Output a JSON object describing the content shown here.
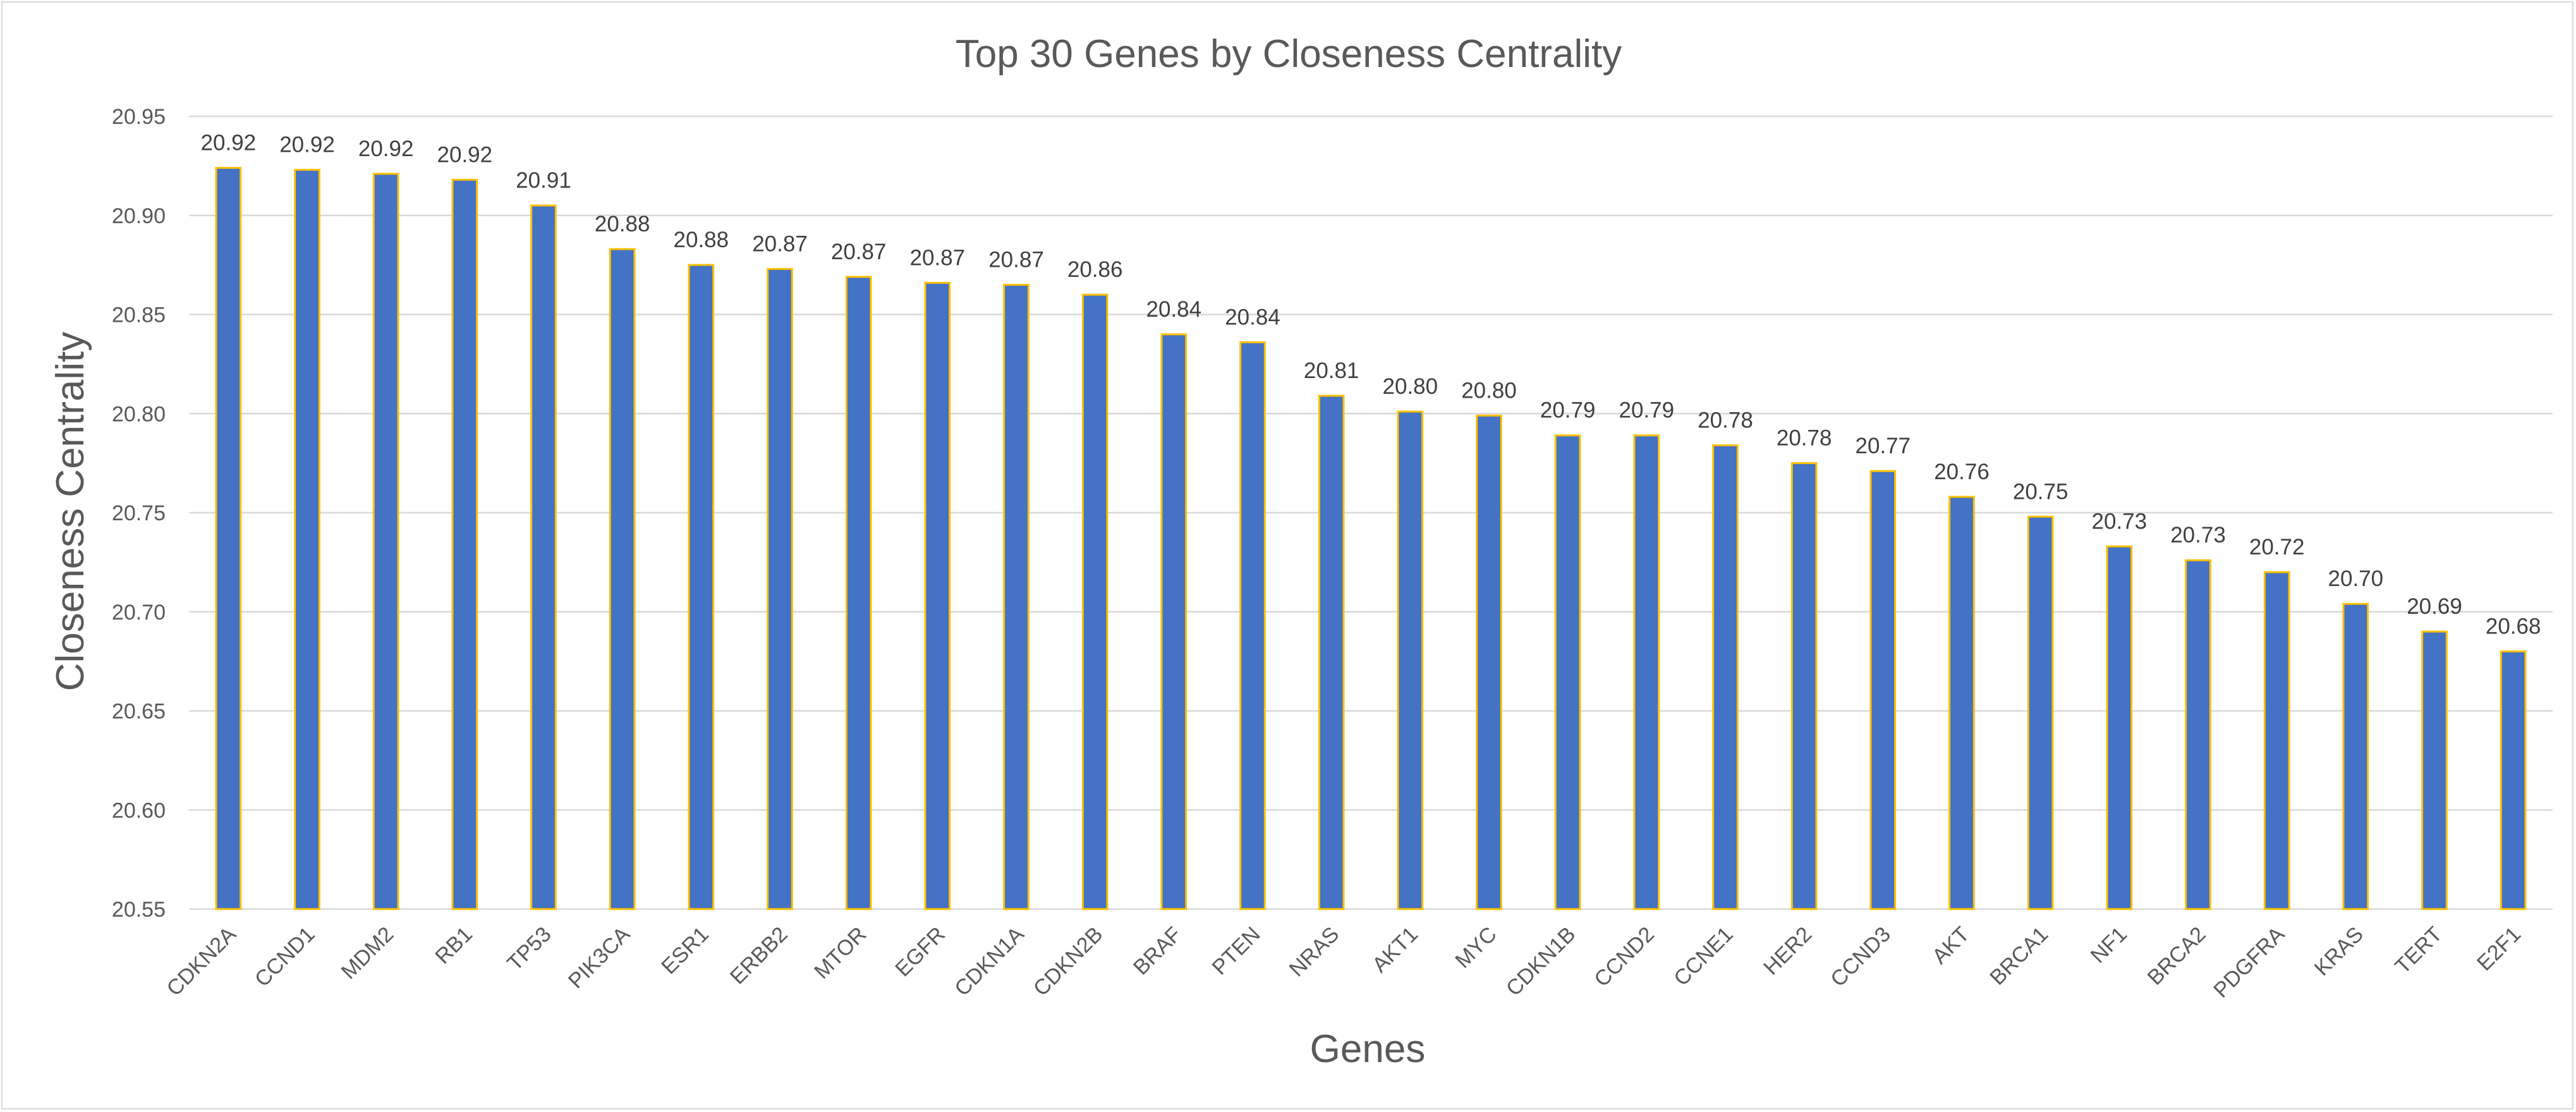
{
  "chart_data": {
    "type": "bar",
    "title": "Top 30 Genes by Closeness Centrality",
    "xlabel": "Genes",
    "ylabel": "Closeness Centrality",
    "ylim": [
      20.55,
      20.95
    ],
    "ytick_step": 0.05,
    "ytick_labels": [
      "20.55",
      "20.60",
      "20.65",
      "20.70",
      "20.75",
      "20.80",
      "20.85",
      "20.90",
      "20.95"
    ],
    "grid": true,
    "legend": "none",
    "bar_color": "#4472c4",
    "bar_edge_color": "#ffc000",
    "categories": [
      "CDKN2A",
      "CCND1",
      "MDM2",
      "RB1",
      "TP53",
      "PIK3CA",
      "ESR1",
      "ERBB2",
      "MTOR",
      "EGFR",
      "CDKN1A",
      "CDKN2B",
      "BRAF",
      "PTEN",
      "NRAS",
      "AKT1",
      "MYC",
      "CDKN1B",
      "CCND2",
      "CCNE1",
      "HER2",
      "CCND3",
      "AKT",
      "BRCA1",
      "NF1",
      "BRCA2",
      "PDGFRA",
      "KRAS",
      "TERT",
      "E2F1"
    ],
    "values": [
      20.924,
      20.923,
      20.921,
      20.918,
      20.905,
      20.883,
      20.875,
      20.873,
      20.869,
      20.866,
      20.865,
      20.86,
      20.84,
      20.836,
      20.809,
      20.801,
      20.799,
      20.789,
      20.789,
      20.784,
      20.775,
      20.771,
      20.758,
      20.748,
      20.733,
      20.726,
      20.72,
      20.704,
      20.69,
      20.68
    ],
    "data_labels": [
      "20.92",
      "20.92",
      "20.92",
      "20.92",
      "20.91",
      "20.88",
      "20.88",
      "20.87",
      "20.87",
      "20.87",
      "20.87",
      "20.86",
      "20.84",
      "20.84",
      "20.81",
      "20.80",
      "20.80",
      "20.79",
      "20.79",
      "20.78",
      "20.78",
      "20.77",
      "20.76",
      "20.75",
      "20.73",
      "20.73",
      "20.72",
      "20.70",
      "20.69",
      "20.68"
    ]
  }
}
